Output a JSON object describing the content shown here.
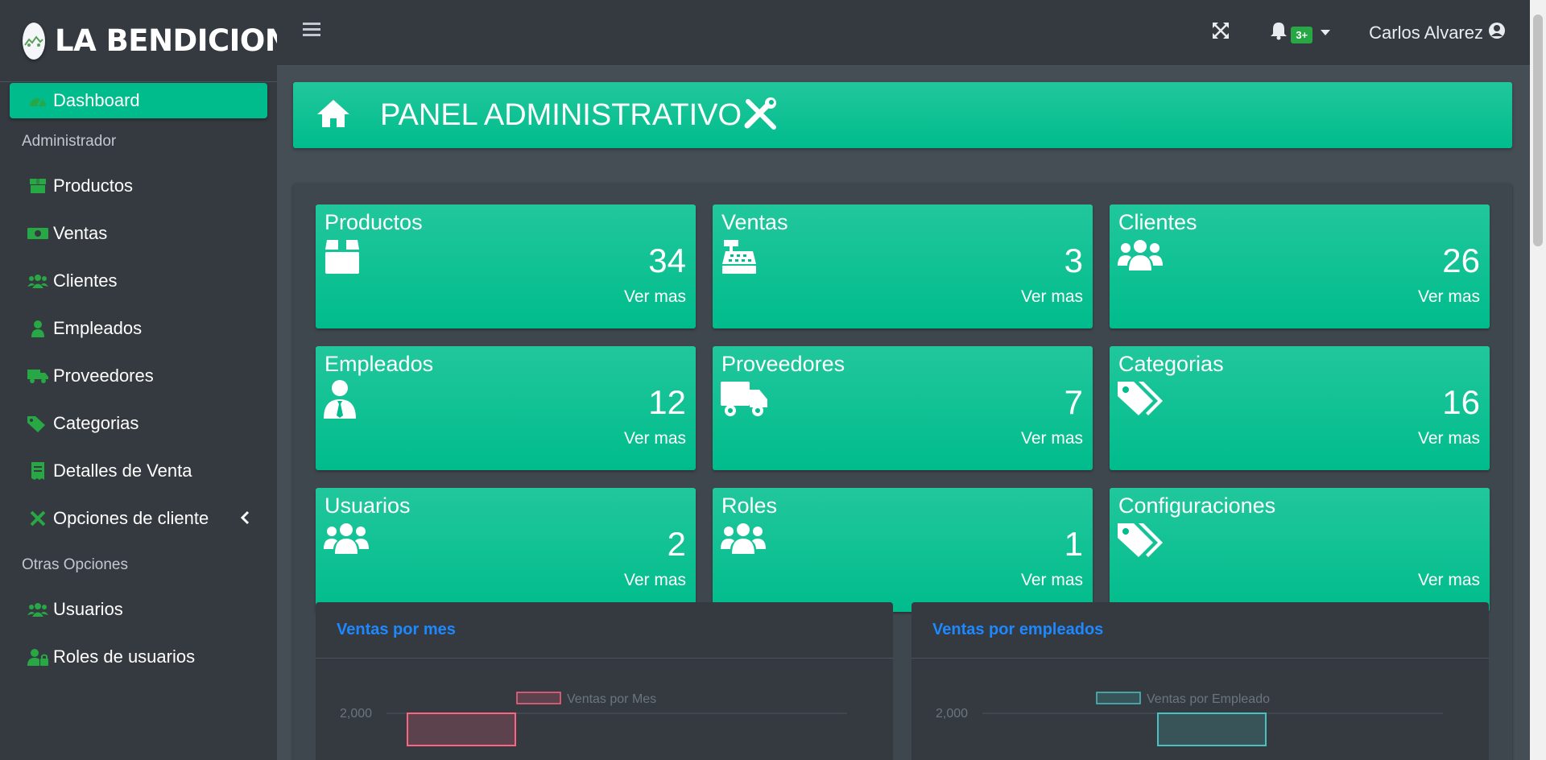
{
  "brand": {
    "name": "LA BENDICION"
  },
  "sidebar": {
    "dashboard": "Dashboard",
    "section_admin": "Administrador",
    "admin_items": [
      {
        "label": "Productos",
        "icon": "box-icon"
      },
      {
        "label": "Ventas",
        "icon": "money-bill-icon"
      },
      {
        "label": "Clientes",
        "icon": "users-icon"
      },
      {
        "label": "Empleados",
        "icon": "user-tie-icon"
      },
      {
        "label": "Proveedores",
        "icon": "truck-icon"
      },
      {
        "label": "Categorias",
        "icon": "tags-icon"
      },
      {
        "label": "Detalles de Venta",
        "icon": "receipt-icon"
      },
      {
        "label": "Opciones de cliente",
        "icon": "tools-icon"
      }
    ],
    "section_other": "Otras Opciones",
    "other_items": [
      {
        "label": "Usuarios",
        "icon": "users-icon"
      },
      {
        "label": "Roles de usuarios",
        "icon": "user-lock-icon"
      }
    ]
  },
  "topbar": {
    "notifications_badge": "3+",
    "user_name": "Carlos Alvarez"
  },
  "banner": {
    "title": "PANEL ADMINISTRATIVO"
  },
  "stats": [
    {
      "title": "Productos",
      "value": "34",
      "link": "Ver mas",
      "icon": "box-icon"
    },
    {
      "title": "Ventas",
      "value": "3",
      "link": "Ver mas",
      "icon": "cash-register-icon"
    },
    {
      "title": "Clientes",
      "value": "26",
      "link": "Ver mas",
      "icon": "users-icon"
    },
    {
      "title": "Empleados",
      "value": "12",
      "link": "Ver mas",
      "icon": "user-tie-icon"
    },
    {
      "title": "Proveedores",
      "value": "7",
      "link": "Ver mas",
      "icon": "truck-icon"
    },
    {
      "title": "Categorias",
      "value": "16",
      "link": "Ver mas",
      "icon": "tags-icon"
    },
    {
      "title": "Usuarios",
      "value": "2",
      "link": "Ver mas",
      "icon": "users-icon"
    },
    {
      "title": "Roles",
      "value": "1",
      "link": "Ver mas",
      "icon": "users-icon"
    },
    {
      "title": "Configuraciones",
      "value": "",
      "link": "Ver mas",
      "icon": "tags-icon"
    }
  ],
  "colors": {
    "accent": "#00bc8c",
    "sidebar": "#343a40",
    "content_bg": "#454d55",
    "chart_title": "#1e88ff"
  },
  "charts": [
    {
      "title": "Ventas por mes"
    },
    {
      "title": "Ventas por empleados"
    }
  ],
  "chart_data": [
    {
      "type": "bar",
      "title": "Ventas por mes",
      "series": [
        {
          "name": "Ventas por Mes",
          "color": "#ff6384"
        }
      ],
      "y_tick": "2,000"
    },
    {
      "type": "bar",
      "title": "Ventas por empleados",
      "series": [
        {
          "name": "Ventas por Empleado",
          "color": "#4bc0c0"
        }
      ],
      "y_tick": "2,000"
    }
  ]
}
